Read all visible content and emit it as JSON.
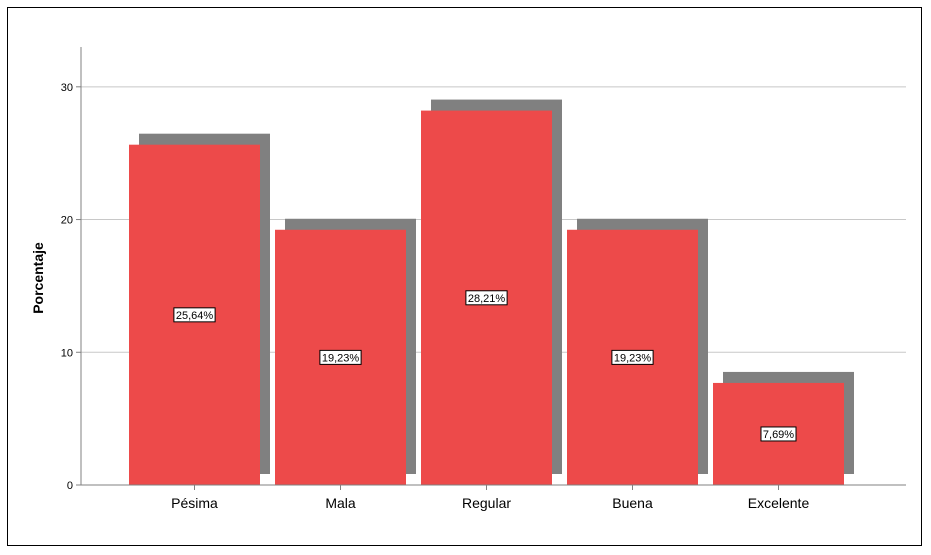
{
  "chart_data": {
    "type": "bar",
    "categories": [
      "Pésima",
      "Mala",
      "Regular",
      "Buena",
      "Excelente"
    ],
    "values": [
      25.64,
      19.23,
      28.21,
      19.23,
      7.69
    ],
    "data_labels": [
      "25,64%",
      "19,23%",
      "28,21%",
      "19,23%",
      "7,69%"
    ],
    "ylabel": "Porcentaje",
    "ylim": [
      0,
      33
    ],
    "yticks": [
      0,
      10,
      20,
      30
    ],
    "grid": true,
    "colors": {
      "bar": "#ED4A4A",
      "shadow": "#808080",
      "grid": "#C8C8C8",
      "axis": "#808080"
    }
  }
}
